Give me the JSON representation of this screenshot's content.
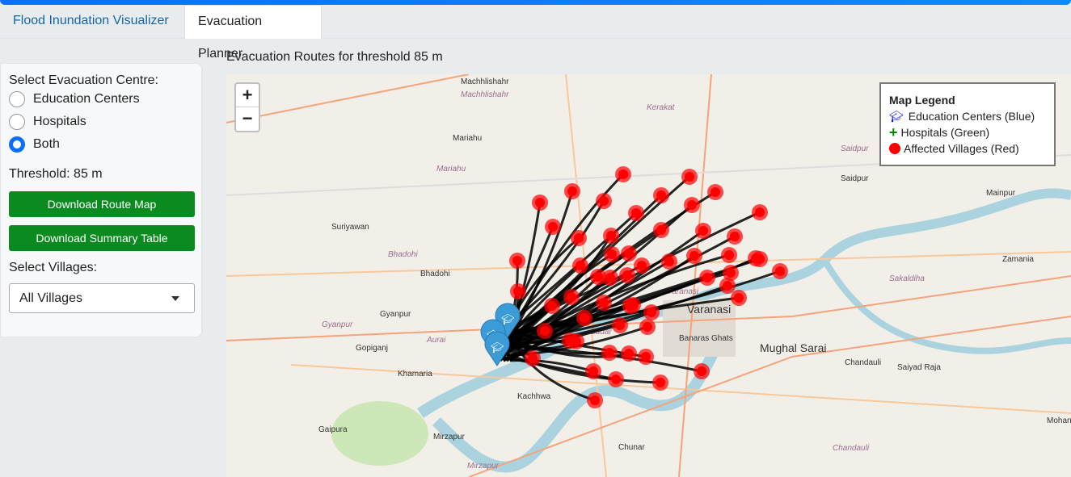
{
  "tabs": [
    {
      "label": "Flood Inundation Visualizer"
    },
    {
      "label": "Evacuation Planner"
    }
  ],
  "sidebar": {
    "centre_label": "Select Evacuation Centre:",
    "options": [
      {
        "label": "Education Centers",
        "selected": false
      },
      {
        "label": "Hospitals",
        "selected": false
      },
      {
        "label": "Both",
        "selected": true
      }
    ],
    "threshold": "Threshold: 85 m",
    "download_map": "Download Route Map",
    "download_table": "Download Summary Table",
    "villages_label": "Select Villages:",
    "villages_value": "All Villages"
  },
  "map": {
    "title": "Evacuation Routes for threshold 85 m",
    "zoom_in": "+",
    "zoom_out": "−",
    "legend": {
      "title": "Map Legend",
      "items": [
        {
          "label": "Education Centers (Blue)",
          "icon": "graduation-cap-icon",
          "color": "#0000ff"
        },
        {
          "label": "Hospitals (Green)",
          "icon": "plus-icon",
          "color": "#008000"
        },
        {
          "label": "Affected Villages (Red)",
          "icon": "circle-icon",
          "color": "#ff0000"
        }
      ]
    },
    "places": [
      "Machhlishahr",
      "Machhlishahr",
      "Kerakat",
      "Mariahu",
      "Mariahu",
      "Saidpur",
      "Saidpur",
      "Mainpur",
      "Suriyawan",
      "Bhadohi",
      "Bhadohi",
      "Varanasi",
      "Varanasi",
      "Zamania",
      "Sakaldiha",
      "Gyanpur",
      "Gyanpur",
      "Aurai",
      "Sadar",
      "Banaras Ghats",
      "Mughal Sarai",
      "Gopiganj",
      "Chandauli",
      "Saiyad Raja",
      "Khamaria",
      "Kachhwa",
      "Gaipura",
      "Mirzapur",
      "Mirzapur",
      "Chunar",
      "Chandauli",
      "Mohani"
    ]
  }
}
